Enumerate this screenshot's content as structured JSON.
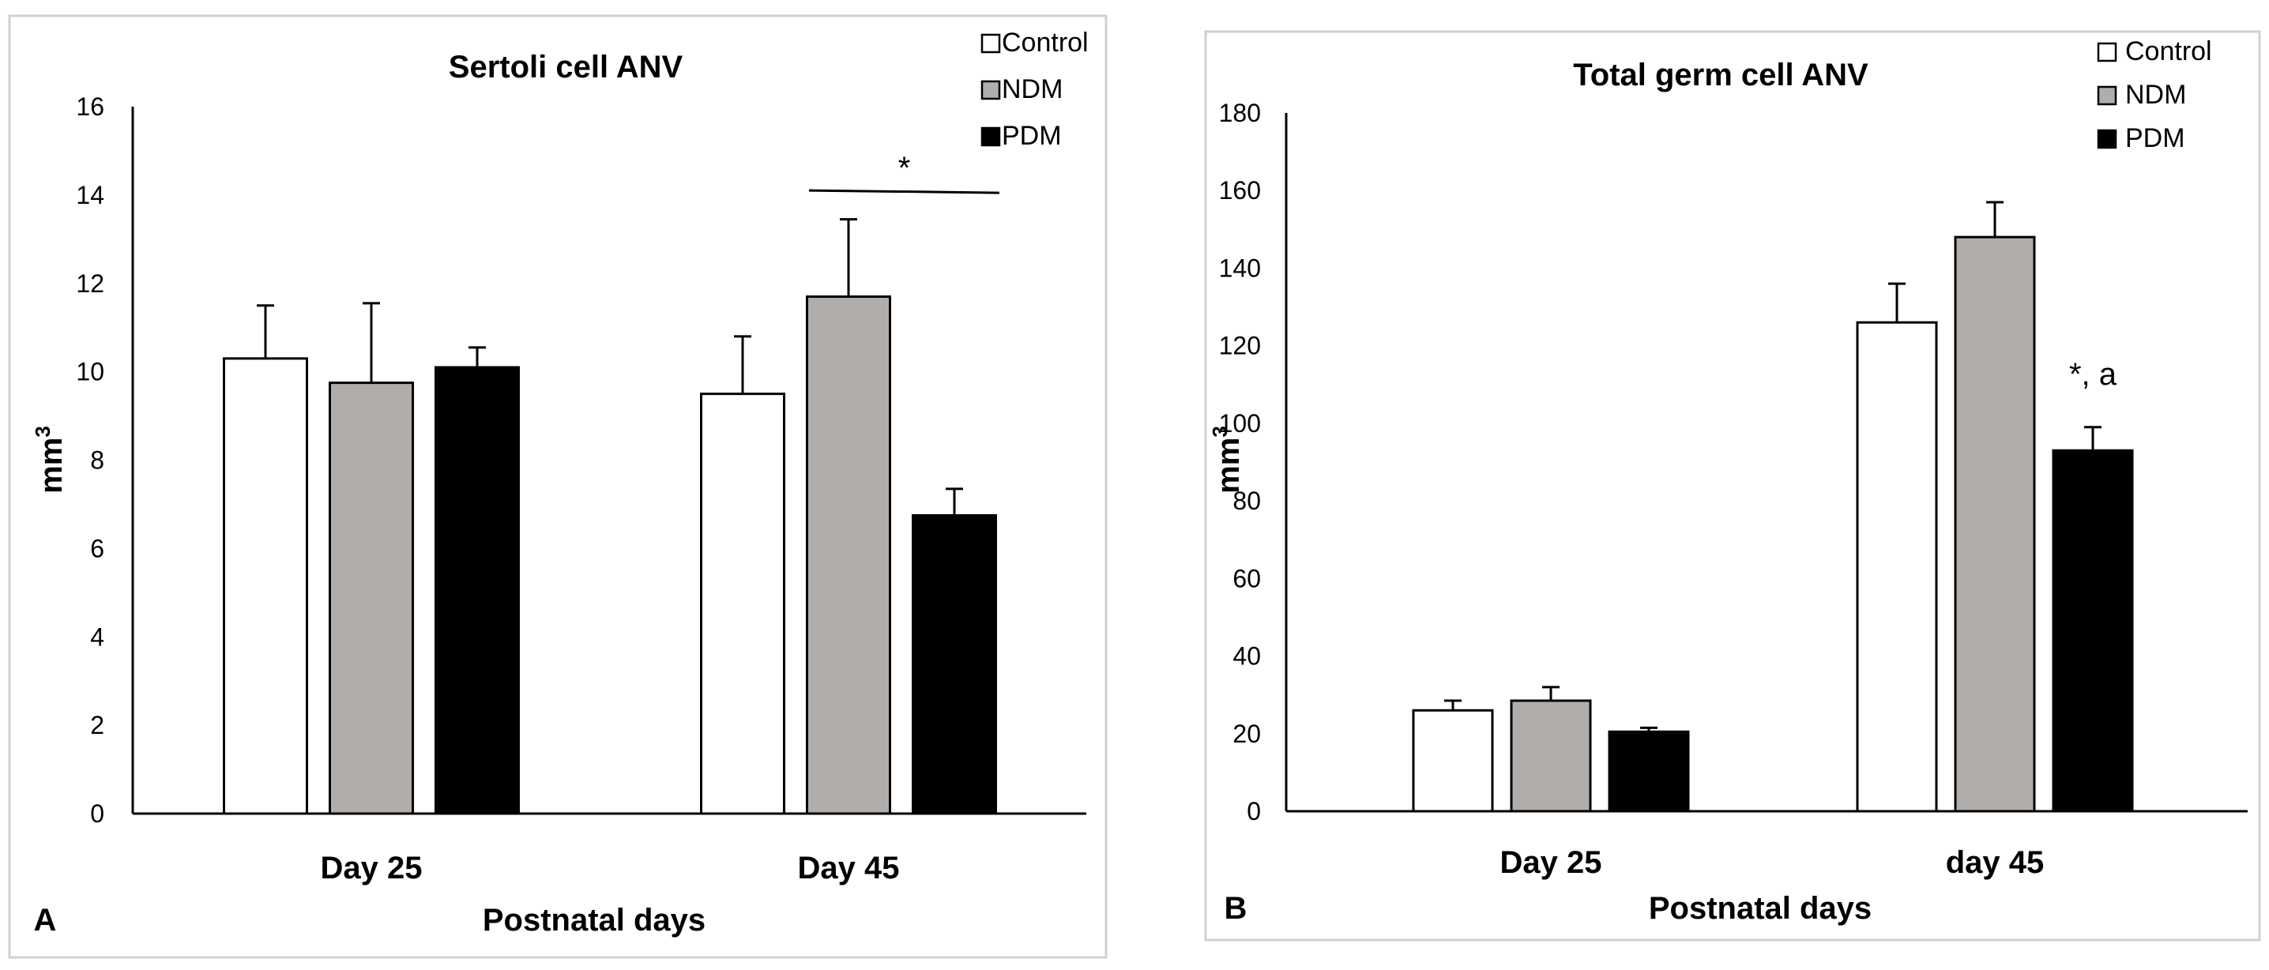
{
  "chart_data": [
    {
      "type": "bar",
      "panel": "A",
      "title": "Sertoli cell ANV",
      "xlabel": "Postnatal days",
      "ylabel": "mm",
      "ylabel_superscript": "3",
      "ylim": [
        0,
        16
      ],
      "yticks": [
        "0",
        "2",
        "4",
        "6",
        "8",
        "10",
        "12",
        "14",
        "16"
      ],
      "ytick_values": [
        0,
        2,
        4,
        6,
        8,
        10,
        12,
        14,
        16
      ],
      "categories": [
        "Day 25",
        "Day 45"
      ],
      "legend_position": "top-right",
      "grid": false,
      "series": [
        {
          "name": "Control",
          "color": "#ffffff",
          "values": [
            10.3,
            9.5
          ],
          "errors": [
            1.2,
            1.3
          ]
        },
        {
          "name": "NDM",
          "color": "#b0adab",
          "values": [
            9.75,
            11.7
          ],
          "errors": [
            1.8,
            1.75
          ]
        },
        {
          "name": "PDM",
          "color": "#000000",
          "values": [
            10.1,
            6.75
          ],
          "errors": [
            0.45,
            0.6
          ]
        }
      ],
      "annotations": [
        {
          "text": "*",
          "category": 1,
          "type": "bracket",
          "from_series": 1,
          "to_series": 2,
          "y": 14.05
        }
      ]
    },
    {
      "type": "bar",
      "panel": "B",
      "title": "Total germ cell ANV",
      "xlabel": "Postnatal days",
      "ylabel": "mm",
      "ylabel_superscript": "3",
      "ylim": [
        0,
        180
      ],
      "yticks": [
        "0",
        "20",
        "40",
        "60",
        "80",
        "100",
        "120",
        "140",
        "160",
        "180"
      ],
      "ytick_values": [
        0,
        20,
        40,
        60,
        80,
        100,
        120,
        140,
        160,
        180
      ],
      "categories": [
        "Day 25",
        "day 45"
      ],
      "legend_position": "top-right",
      "grid": false,
      "series": [
        {
          "name": "Control",
          "color": "#ffffff",
          "values": [
            26,
            126
          ],
          "errors": [
            2.5,
            10
          ]
        },
        {
          "name": "NDM",
          "color": "#b0adab",
          "values": [
            28.5,
            148
          ],
          "errors": [
            3.5,
            9
          ]
        },
        {
          "name": "PDM",
          "color": "#000000",
          "values": [
            20.5,
            93
          ],
          "errors": [
            1,
            6
          ]
        }
      ],
      "annotations": [
        {
          "text": "*, a",
          "category": 1,
          "type": "label",
          "series": 2,
          "y": 110
        }
      ]
    }
  ]
}
